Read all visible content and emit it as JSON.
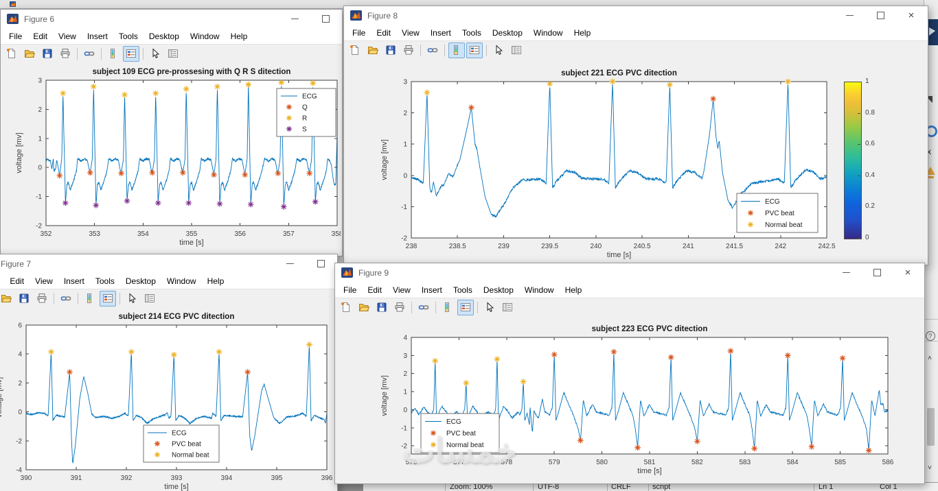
{
  "menu": [
    "File",
    "Edit",
    "View",
    "Insert",
    "Tools",
    "Desktop",
    "Window",
    "Help"
  ],
  "toolbar_icons": [
    "new-figure",
    "open-file",
    "save-figure",
    "print-figure",
    "link-plot",
    "insert-colorbar",
    "insert-legend",
    "edit-plot-cursor",
    "property-inspector"
  ],
  "figures": [
    {
      "id": "fig6",
      "window_title": "Figure 6",
      "controls": [
        "minimize",
        "maximize"
      ],
      "dock_arrow": false,
      "toolbar_pressed": [
        "insert-legend"
      ]
    },
    {
      "id": "fig8",
      "window_title": "Figure 8",
      "controls": [
        "minimize",
        "maximize",
        "close"
      ],
      "dock_arrow": true,
      "toolbar_pressed": [
        "insert-colorbar",
        "insert-legend"
      ]
    },
    {
      "id": "fig7",
      "window_title": "Figure 7",
      "controls": [
        "minimize",
        "maximize"
      ],
      "dock_arrow": false,
      "toolbar_pressed": [
        "insert-legend"
      ]
    },
    {
      "id": "fig9",
      "window_title": "Figure 9",
      "controls": [
        "minimize",
        "maximize",
        "close"
      ],
      "dock_arrow": true,
      "toolbar_pressed": [
        "insert-legend"
      ]
    }
  ],
  "chart_data": [
    {
      "id": "fig6",
      "type": "line",
      "title": "subject 109 ECG pre-prossesing with Q R S ditection",
      "xlabel": "time [s]",
      "ylabel": "voltage [mv]",
      "xlim": [
        352,
        358
      ],
      "ylim": [
        -2,
        3
      ],
      "xticks": [
        352,
        353,
        354,
        355,
        356,
        357,
        358
      ],
      "xtick_labels": [
        "352",
        "353",
        "354",
        "355",
        "356",
        "357",
        "358"
      ],
      "yticks": [
        -2,
        -1,
        0,
        1,
        2,
        3
      ],
      "ytick_labels": [
        "-2",
        "-1",
        "0",
        "1",
        "2",
        "3"
      ],
      "grid": false,
      "line_color": "#0072BD",
      "legend": {
        "position": "top-right",
        "entries": [
          {
            "label": "ECG",
            "marker": "line",
            "color": "#0072BD"
          },
          {
            "label": "Q",
            "marker": "asterisk",
            "color": "#D95319"
          },
          {
            "label": "R",
            "marker": "asterisk",
            "color": "#EDB120"
          },
          {
            "label": "S",
            "marker": "asterisk",
            "color": "#7E2F8E"
          }
        ]
      },
      "series": [
        {
          "name": "Q",
          "marker": "asterisk",
          "color": "#D95319",
          "points": [
            [
              352.28,
              -0.28
            ],
            [
              352.91,
              -0.18
            ],
            [
              353.55,
              -0.2
            ],
            [
              354.19,
              -0.18
            ],
            [
              354.82,
              -0.18
            ],
            [
              355.46,
              -0.25
            ],
            [
              356.1,
              -0.25
            ],
            [
              356.78,
              -0.2
            ],
            [
              357.43,
              -0.2
            ]
          ]
        },
        {
          "name": "R",
          "marker": "asterisk",
          "color": "#EDB120",
          "points": [
            [
              352.35,
              2.55
            ],
            [
              352.98,
              2.78
            ],
            [
              353.62,
              2.5
            ],
            [
              354.26,
              2.55
            ],
            [
              354.89,
              2.7
            ],
            [
              355.53,
              2.78
            ],
            [
              356.17,
              2.85
            ],
            [
              356.85,
              2.92
            ],
            [
              357.5,
              2.9
            ]
          ]
        },
        {
          "name": "S",
          "marker": "asterisk",
          "color": "#7E2F8E",
          "points": [
            [
              352.4,
              -1.22
            ],
            [
              353.03,
              -1.3
            ],
            [
              353.67,
              -1.15
            ],
            [
              354.31,
              -1.22
            ],
            [
              354.94,
              -1.22
            ],
            [
              355.58,
              -1.25
            ],
            [
              356.22,
              -1.27
            ],
            [
              356.9,
              -1.35
            ],
            [
              357.55,
              -1.18
            ]
          ]
        }
      ]
    },
    {
      "id": "fig8",
      "type": "line",
      "title": "subject 221 ECG PVC ditection",
      "xlabel": "time [s]",
      "ylabel": "voltage [mv]",
      "xlim": [
        238,
        242.5
      ],
      "ylim": [
        -2,
        3
      ],
      "xticks": [
        238,
        238.5,
        239,
        239.5,
        240,
        240.5,
        241,
        241.5,
        242,
        242.5
      ],
      "xtick_labels": [
        "238",
        "238.5",
        "239",
        "239.5",
        "240",
        "240.5",
        "241",
        "241.5",
        "242",
        "242.5"
      ],
      "yticks": [
        -2,
        -1,
        0,
        1,
        2,
        3
      ],
      "ytick_labels": [
        "-2",
        "-1",
        "0",
        "1",
        "2",
        "3"
      ],
      "grid": false,
      "line_color": "#0072BD",
      "colorbar": {
        "colormap": "parula",
        "ticks": [
          0,
          0.2,
          0.4,
          0.6,
          0.8,
          1
        ],
        "tick_labels": [
          "0",
          "0.2",
          "0.4",
          "0.6",
          "0.8",
          "1"
        ]
      },
      "legend": {
        "position": "bottom-right",
        "entries": [
          {
            "label": "ECG",
            "marker": "line",
            "color": "#0072BD"
          },
          {
            "label": "PVC beat",
            "marker": "asterisk",
            "color": "#D95319"
          },
          {
            "label": "Normal beat",
            "marker": "asterisk",
            "color": "#EDB120"
          }
        ]
      },
      "series": [
        {
          "name": "PVC beat",
          "marker": "asterisk",
          "color": "#D95319",
          "points": [
            [
              238.65,
              2.17
            ],
            [
              241.27,
              2.45
            ]
          ]
        },
        {
          "name": "Normal beat",
          "marker": "asterisk",
          "color": "#EDB120",
          "points": [
            [
              238.17,
              2.65
            ],
            [
              239.5,
              2.93
            ],
            [
              240.18,
              3.0
            ],
            [
              240.8,
              2.9
            ],
            [
              242.08,
              3.0
            ]
          ]
        }
      ]
    },
    {
      "id": "fig7",
      "type": "line",
      "title": "subject 214 ECG PVC ditection",
      "xlabel": "time [s]",
      "ylabel": "voltage [mv]",
      "xlim": [
        390,
        396
      ],
      "ylim": [
        -4,
        6
      ],
      "xticks": [
        390,
        391,
        392,
        393,
        394,
        395,
        396
      ],
      "xtick_labels": [
        "390",
        "391",
        "392",
        "393",
        "394",
        "395",
        "396"
      ],
      "yticks": [
        -4,
        -2,
        0,
        2,
        4,
        6
      ],
      "ytick_labels": [
        "-4",
        "-2",
        "0",
        "2",
        "4",
        "6"
      ],
      "grid": false,
      "line_color": "#0072BD",
      "legend": {
        "position": "bottom-center",
        "entries": [
          {
            "label": "ECG",
            "marker": "line",
            "color": "#0072BD"
          },
          {
            "label": "PVC beat",
            "marker": "asterisk",
            "color": "#D95319"
          },
          {
            "label": "Normal beat",
            "marker": "asterisk",
            "color": "#EDB120"
          }
        ]
      },
      "series": [
        {
          "name": "PVC beat",
          "marker": "asterisk",
          "color": "#D95319",
          "points": [
            [
              390.87,
              2.75
            ],
            [
              394.42,
              2.75
            ]
          ]
        },
        {
          "name": "Normal beat",
          "marker": "asterisk",
          "color": "#EDB120",
          "points": [
            [
              390.5,
              4.15
            ],
            [
              392.1,
              4.15
            ],
            [
              392.95,
              3.95
            ],
            [
              393.85,
              4.15
            ],
            [
              395.65,
              4.65
            ]
          ]
        }
      ]
    },
    {
      "id": "fig9",
      "type": "line",
      "title": "subject 223 ECG PVC ditection",
      "xlabel": "time [s]",
      "ylabel": "voltage [mv]",
      "xlim": [
        576,
        586
      ],
      "ylim": [
        -2.45,
        4
      ],
      "xticks": [
        576,
        577,
        578,
        579,
        580,
        581,
        582,
        583,
        584,
        585,
        586
      ],
      "xtick_labels": [
        "576",
        "577",
        "578",
        "579",
        "580",
        "581",
        "582",
        "583",
        "584",
        "585",
        "586"
      ],
      "yticks": [
        -2,
        -1,
        0,
        1,
        2,
        3,
        4
      ],
      "ytick_labels": [
        "-2",
        "-1",
        "0",
        "1",
        "2",
        "3",
        "4"
      ],
      "grid": false,
      "line_color": "#0072BD",
      "legend": {
        "position": "left",
        "entries": [
          {
            "label": "ECG",
            "marker": "line",
            "color": "#0072BD"
          },
          {
            "label": "PVC beat",
            "marker": "asterisk",
            "color": "#D95319"
          },
          {
            "label": "Normal beat",
            "marker": "asterisk",
            "color": "#EDB120"
          }
        ]
      },
      "series": [
        {
          "name": "PVC beat",
          "marker": "asterisk",
          "color": "#D95319",
          "points": [
            [
              579.0,
              3.05
            ],
            [
              579.55,
              -1.7
            ],
            [
              580.25,
              3.2
            ],
            [
              580.75,
              -2.1
            ],
            [
              581.45,
              2.9
            ],
            [
              582.0,
              -1.75
            ],
            [
              582.7,
              3.25
            ],
            [
              583.2,
              -2.15
            ],
            [
              583.9,
              3.0
            ],
            [
              584.4,
              -2.05
            ],
            [
              585.05,
              2.85
            ],
            [
              585.6,
              -2.25
            ]
          ]
        },
        {
          "name": "Normal beat",
          "marker": "asterisk",
          "color": "#EDB120",
          "points": [
            [
              576.5,
              2.7
            ],
            [
              577.15,
              1.48
            ],
            [
              577.8,
              2.8
            ],
            [
              578.35,
              1.55
            ]
          ]
        }
      ]
    }
  ],
  "statusbar": {
    "items": [
      "Zoom: 100%",
      "UTF-8",
      "CRLF",
      "script"
    ],
    "line": "Ln  1",
    "column": "Col  1"
  },
  "watermark": {
    "text": "خمسات"
  },
  "edge_icons": [
    "collapse-corner-icon",
    "blue-ring-icon",
    "close-x-icon",
    "warning-triangle-icon",
    "help-circle-icon",
    "scroll-up-icon",
    "scrollbar-thumb",
    "scroll-down-icon"
  ],
  "colors": {
    "matlab_blue": "#0072BD",
    "pvc_orange": "#D95319",
    "normal_yellow": "#EDB120",
    "s_purple": "#7E2F8E"
  }
}
